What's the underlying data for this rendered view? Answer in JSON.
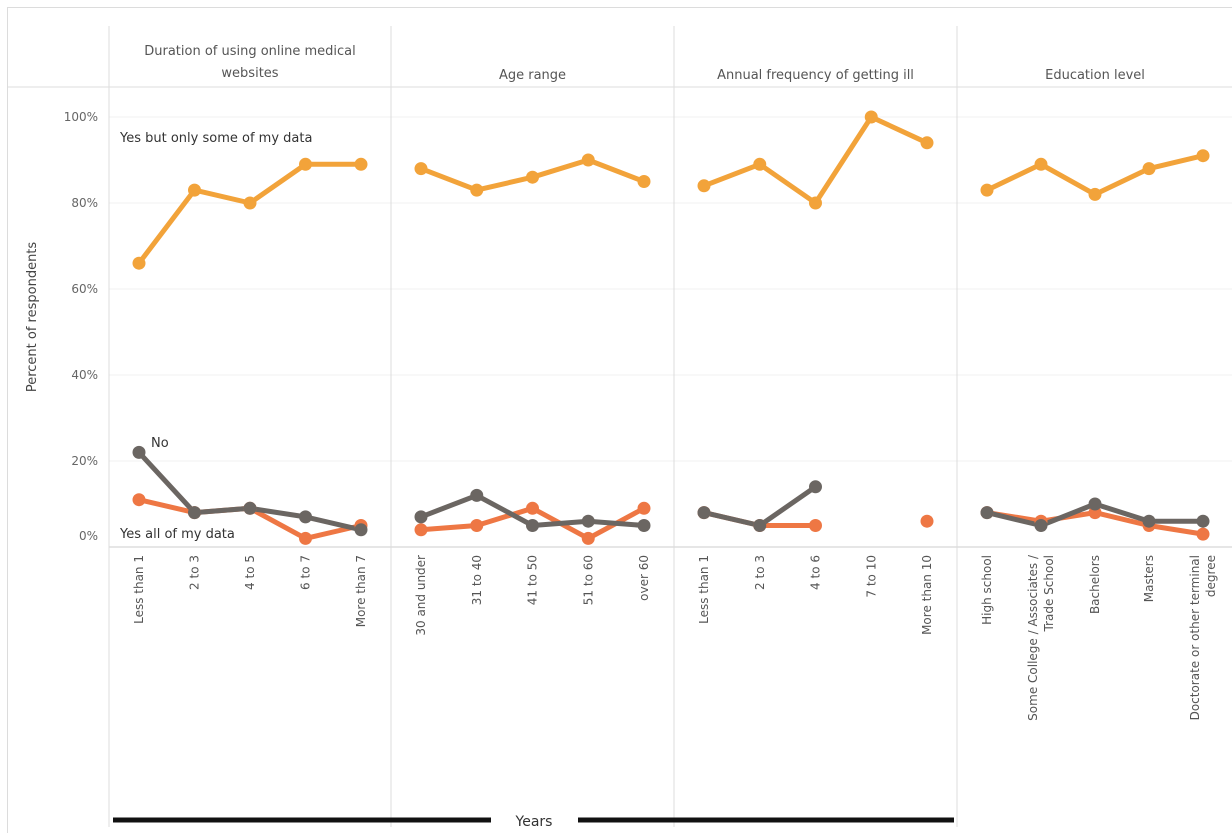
{
  "chart_data": {
    "type": "line",
    "ylabel": "Percent of respondents",
    "xlabel": "Years",
    "ylim": [
      0,
      100
    ],
    "yticks": [
      "0%",
      "20%",
      "40%",
      "60%",
      "80%",
      "100%"
    ],
    "grid": true,
    "colors": {
      "yes_some": "#f2a33a",
      "yes_all": "#ee7744",
      "no": "#6b6662"
    },
    "annotations": {
      "yes_some": "Yes but only some of my data",
      "no": "No",
      "yes_all": "Yes all of my data"
    },
    "panels": [
      {
        "title": [
          "Duration of using online medical",
          "websites"
        ],
        "categories": [
          [
            "Less than 1"
          ],
          [
            "2 to 3"
          ],
          [
            "4 to 5"
          ],
          [
            "6 to 7"
          ],
          [
            "More than 7"
          ]
        ],
        "series": [
          {
            "key": "yes_some",
            "values": [
              66,
              83,
              80,
              89,
              89
            ]
          },
          {
            "key": "yes_all",
            "values": [
              11,
              8,
              9,
              2,
              5
            ]
          },
          {
            "key": "no",
            "values": [
              22,
              8,
              9,
              7,
              4
            ]
          }
        ]
      },
      {
        "title": [
          "Age range"
        ],
        "categories": [
          [
            "30 and under"
          ],
          [
            "31 to 40"
          ],
          [
            "41 to 50"
          ],
          [
            "51 to 60"
          ],
          [
            "over 60"
          ]
        ],
        "series": [
          {
            "key": "yes_some",
            "values": [
              88,
              83,
              86,
              90,
              85
            ]
          },
          {
            "key": "yes_all",
            "values": [
              4,
              5,
              9,
              2,
              9
            ]
          },
          {
            "key": "no",
            "values": [
              7,
              12,
              5,
              6,
              5
            ]
          }
        ]
      },
      {
        "title": [
          "Annual frequency of getting ill"
        ],
        "categories": [
          [
            "Less than 1"
          ],
          [
            "2 to 3"
          ],
          [
            "4 to 6"
          ],
          [
            "7 to 10"
          ],
          [
            "More than 10"
          ]
        ],
        "series": [
          {
            "key": "yes_some",
            "values": [
              84,
              89,
              80,
              100,
              94
            ]
          },
          {
            "key": "yes_all",
            "values": [
              8,
              5,
              5,
              null,
              6
            ]
          },
          {
            "key": "no",
            "values": [
              8,
              5,
              14,
              null,
              null
            ]
          }
        ]
      },
      {
        "title": [
          "Education level"
        ],
        "categories": [
          [
            "High school"
          ],
          [
            "Some College / Associates /",
            "Trade School"
          ],
          [
            "Bachelors"
          ],
          [
            "Masters"
          ],
          [
            "Doctorate or other terminal",
            "degree"
          ]
        ],
        "series": [
          {
            "key": "yes_some",
            "values": [
              83,
              89,
              82,
              88,
              91
            ]
          },
          {
            "key": "yes_all",
            "values": [
              8,
              6,
              8,
              5,
              3
            ]
          },
          {
            "key": "no",
            "values": [
              8,
              5,
              10,
              6,
              6
            ]
          }
        ]
      }
    ]
  }
}
